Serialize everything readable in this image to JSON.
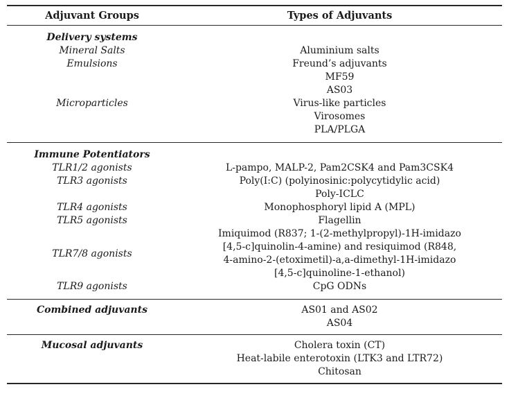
{
  "colors": {
    "text": "#1a1a1a",
    "rules": "#262626",
    "background": "#ffffff"
  },
  "table": {
    "columns": [
      {
        "label": "Adjuvant Groups"
      },
      {
        "label": "Types of Adjuvants"
      }
    ],
    "sections": [
      {
        "rows": [
          {
            "left": "Delivery systems",
            "left_style": "group",
            "right_lines": []
          },
          {
            "left": "Mineral Salts",
            "left_style": "sub",
            "right_lines": [
              "Aluminium salts"
            ]
          },
          {
            "left": "Emulsions",
            "left_style": "sub",
            "right_lines": [
              "Freund’s adjuvants",
              "MF59",
              "AS03"
            ]
          },
          {
            "left": "Microparticles",
            "left_style": "sub",
            "right_lines": [
              "Virus-like particles",
              "Virosomes",
              "PLA/PLGA"
            ]
          }
        ]
      },
      {
        "rows": [
          {
            "left": "Immune Potentiators",
            "left_style": "group",
            "right_lines": []
          },
          {
            "left": "TLR1/2 agonists",
            "left_style": "sub",
            "right_lines": [
              "L-pampo, MALP-2, Pam2CSK4 and Pam3CSK4"
            ]
          },
          {
            "left": "TLR3 agonists",
            "left_style": "sub",
            "right_lines": [
              "Poly(I:C) (polyinosinic:polycytidylic acid)",
              "Poly-ICLC"
            ]
          },
          {
            "left": "TLR4 agonists",
            "left_style": "sub",
            "right_lines": [
              "Monophosphoryl lipid A (MPL)"
            ]
          },
          {
            "left": "TLR5 agonists",
            "left_style": "sub",
            "right_lines": [
              "Flagellin"
            ]
          },
          {
            "left": "TLR7/8 agonists",
            "left_style": "sub",
            "valign": "middle",
            "right_lines": [
              "Imiquimod (R837; 1-(2-methylpropyl)-1H-imidazo",
              "[4,5-c]quinolin-4-amine) and resiquimod (R848,",
              "4-amino-2-(etoximetil)-a,a-dimethyl-1H-imidazo",
              "[4,5-c]quinoline-1-ethanol)"
            ]
          },
          {
            "left": "TLR9 agonists",
            "left_style": "sub",
            "right_lines": [
              "CpG ODNs"
            ]
          }
        ]
      },
      {
        "rows": [
          {
            "left": "Combined adjuvants",
            "left_style": "group",
            "right_lines": [
              "AS01 and AS02",
              "AS04"
            ]
          }
        ]
      },
      {
        "rows": [
          {
            "left": "Mucosal adjuvants",
            "left_style": "group",
            "right_lines": [
              "Cholera toxin (CT)",
              "Heat-labile enterotoxin (LTK3 and LTR72)",
              "Chitosan"
            ]
          }
        ]
      }
    ]
  }
}
